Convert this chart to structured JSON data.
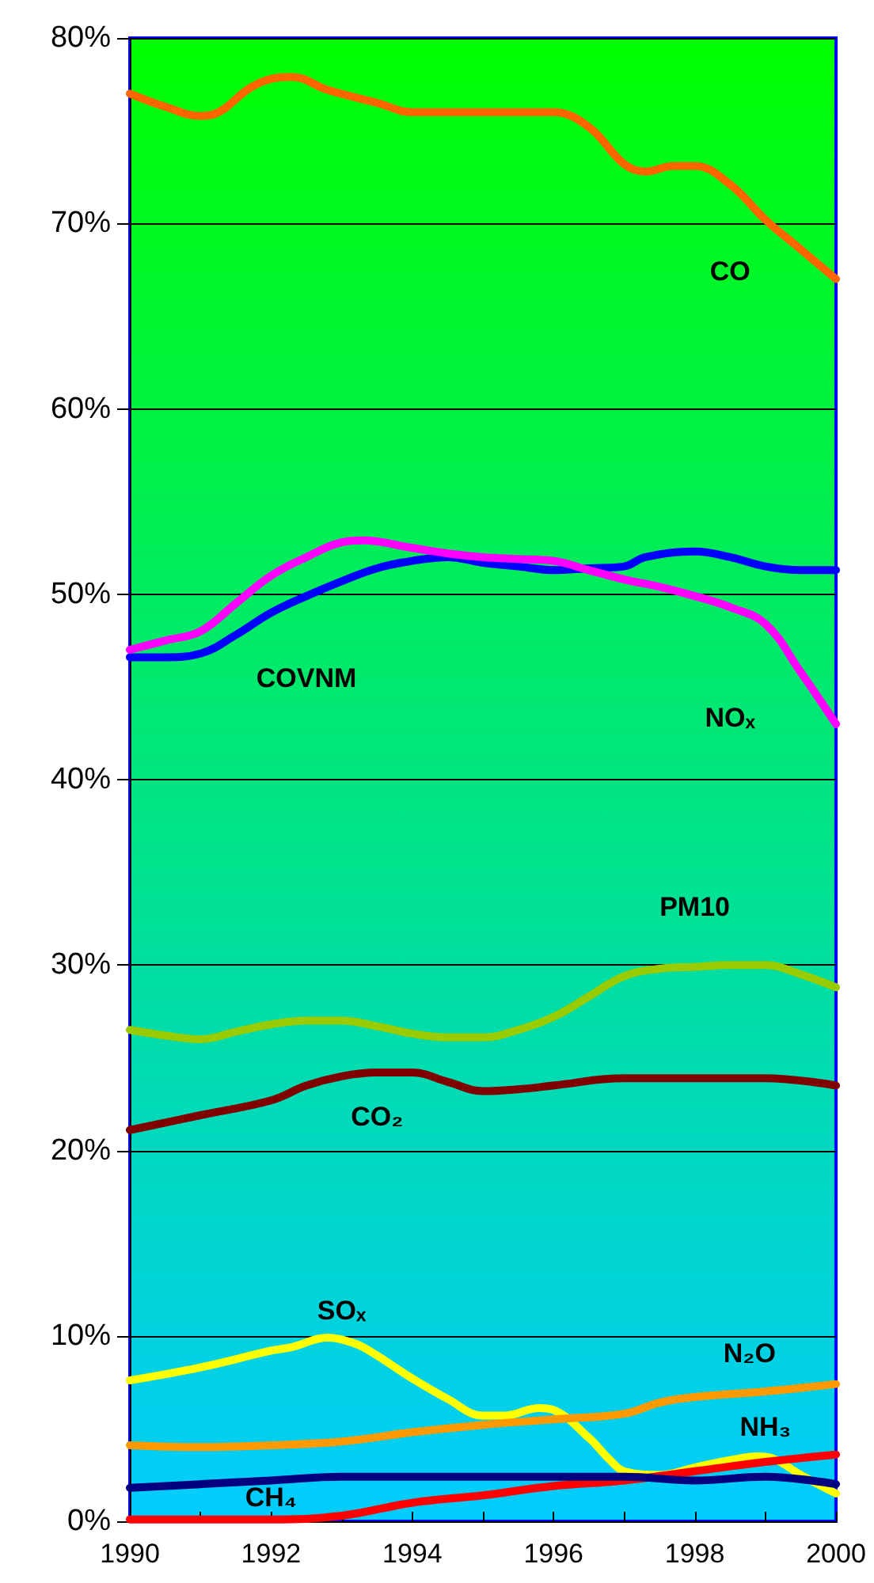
{
  "chart_data": {
    "type": "line",
    "xlim": [
      1990,
      2000
    ],
    "xticks": [
      1990,
      {
        "value": 1991,
        "label": null
      },
      1992,
      {
        "value": 1993,
        "label": null
      },
      1994,
      {
        "value": 1995,
        "label": null
      },
      1996,
      {
        "value": 1997,
        "label": null
      },
      1998,
      {
        "value": 1999,
        "label": null
      },
      2000
    ],
    "ylim": [
      0,
      80
    ],
    "yticks": [
      {
        "value": 0,
        "label": "0%"
      },
      {
        "value": 10,
        "label": "10%"
      },
      {
        "value": 20,
        "label": "20%"
      },
      {
        "value": 30,
        "label": "30%"
      },
      {
        "value": 40,
        "label": "40%"
      },
      {
        "value": 50,
        "label": "50%"
      },
      {
        "value": 60,
        "label": "60%"
      },
      {
        "value": 70,
        "label": "70%"
      },
      {
        "value": 80,
        "label": "80%"
      }
    ],
    "grid": "y",
    "legend": false,
    "marker": "none",
    "line_style": "solid",
    "series": [
      {
        "name": "CO",
        "color": "#ff6600",
        "x": [
          1990,
          1990.5,
          1991,
          1991.2,
          1991.7,
          1992,
          1992.3,
          1992.8,
          1993.5,
          1994,
          1995,
          1995.5,
          1996,
          1996.5,
          1997,
          1997.3,
          1997.7,
          1998,
          1998.5,
          1999,
          1999.5,
          2000
        ],
        "values": [
          77,
          76.3,
          75.8,
          75.9,
          77.3,
          77.8,
          77.9,
          77.2,
          76.5,
          76,
          76,
          76,
          76,
          75.2,
          73.2,
          72.8,
          73.1,
          73.1,
          72.1,
          70.2,
          68.6,
          67
        ]
      },
      {
        "name": "COVNM",
        "color": "#0000ff",
        "x": [
          1990,
          1990.5,
          1991,
          1991.5,
          1992,
          1992.5,
          1993,
          1993.5,
          1994,
          1994.5,
          1995,
          1995.5,
          1996,
          1996.5,
          1997,
          1997.3,
          1998,
          1998.5,
          1999,
          1999.5,
          2000
        ],
        "values": [
          46.6,
          46.6,
          46.8,
          47.8,
          49,
          49.9,
          50.7,
          51.4,
          51.8,
          52,
          51.7,
          51.5,
          51.3,
          51.4,
          51.5,
          52,
          52.3,
          52,
          51.5,
          51.3,
          51.3
        ]
      },
      {
        "name": "NOₓ",
        "color": "#ff00ff",
        "x": [
          1990,
          1990.5,
          1991,
          1991.5,
          1992,
          1992.5,
          1993,
          1993.3,
          1994,
          1994.5,
          1995,
          1995.5,
          1996,
          1996.5,
          1997,
          1997.5,
          1998,
          1998.5,
          1999,
          1999.5,
          2000
        ],
        "values": [
          47,
          47.5,
          48,
          49.5,
          51,
          52,
          52.8,
          52.9,
          52.5,
          52.2,
          52,
          51.9,
          51.8,
          51.3,
          50.8,
          50.4,
          49.9,
          49.3,
          48.4,
          45.8,
          43
        ]
      },
      {
        "name": "PM10",
        "color": "#99cc00",
        "x": [
          1990,
          1990.5,
          1991,
          1991.5,
          1992,
          1992.5,
          1993,
          1993.5,
          1994,
          1994.5,
          1995,
          1995.5,
          1996,
          1996.5,
          1997,
          1997.5,
          1998,
          1998.5,
          1999,
          1999.5,
          2000
        ],
        "values": [
          26.5,
          26.2,
          26,
          26.4,
          26.8,
          27,
          27,
          26.7,
          26.3,
          26.1,
          26.1,
          26.5,
          27.2,
          28.3,
          29.4,
          29.8,
          29.9,
          30,
          30,
          29.5,
          28.8
        ]
      },
      {
        "name": "CO₂",
        "color": "#800000",
        "x": [
          1990,
          1991,
          1992,
          1992.5,
          1993,
          1993.5,
          1994,
          1994.5,
          1995,
          1995.5,
          1996,
          1997,
          1998,
          1999,
          2000
        ],
        "values": [
          21.1,
          21.9,
          22.7,
          23.5,
          24,
          24.2,
          24.2,
          23.7,
          23.2,
          23.3,
          23.5,
          23.9,
          23.9,
          23.9,
          23.5
        ]
      },
      {
        "name": "SOₓ",
        "color": "#ffff00",
        "x": [
          1990,
          1991,
          1992,
          1992.3,
          1992.8,
          1993,
          1993.3,
          1994,
          1994.5,
          1995,
          1995.3,
          1995.8,
          1996,
          1996.5,
          1996.8,
          1997,
          1997.5,
          1998,
          1998.5,
          1998.9,
          1999.1,
          1999.5,
          2000
        ],
        "values": [
          7.6,
          8.3,
          9.2,
          9.4,
          9.9,
          9.8,
          9.4,
          7.7,
          6.6,
          5.7,
          5.7,
          6.1,
          6,
          4.5,
          3.3,
          2.7,
          2.5,
          2.9,
          3.3,
          3.5,
          3.4,
          2.5,
          1.5
        ]
      },
      {
        "name": "N₂O",
        "color": "#ff9900",
        "x": [
          1990,
          1991,
          1992,
          1993,
          1994,
          1995,
          1996,
          1997,
          1997.5,
          1998,
          1999,
          2000
        ],
        "values": [
          4.1,
          4,
          4.1,
          4.3,
          4.8,
          5.2,
          5.5,
          5.8,
          6.4,
          6.7,
          7,
          7.4
        ]
      },
      {
        "name": "NH₃",
        "color": "#ff0000",
        "x": [
          1990,
          1992,
          1993,
          1994,
          1995,
          1996,
          1997,
          1998,
          1999,
          2000
        ],
        "values": [
          0.1,
          0.1,
          0.3,
          1,
          1.4,
          1.9,
          2.2,
          2.7,
          3.2,
          3.6
        ]
      },
      {
        "name": "CH₄",
        "color": "#000080",
        "x": [
          1990,
          1991,
          1992,
          1993,
          1994,
          1995,
          1996,
          1997,
          1998,
          1999,
          2000
        ],
        "values": [
          1.8,
          2,
          2.2,
          2.4,
          2.4,
          2.4,
          2.4,
          2.4,
          2.2,
          2.4,
          2
        ]
      }
    ]
  }
}
